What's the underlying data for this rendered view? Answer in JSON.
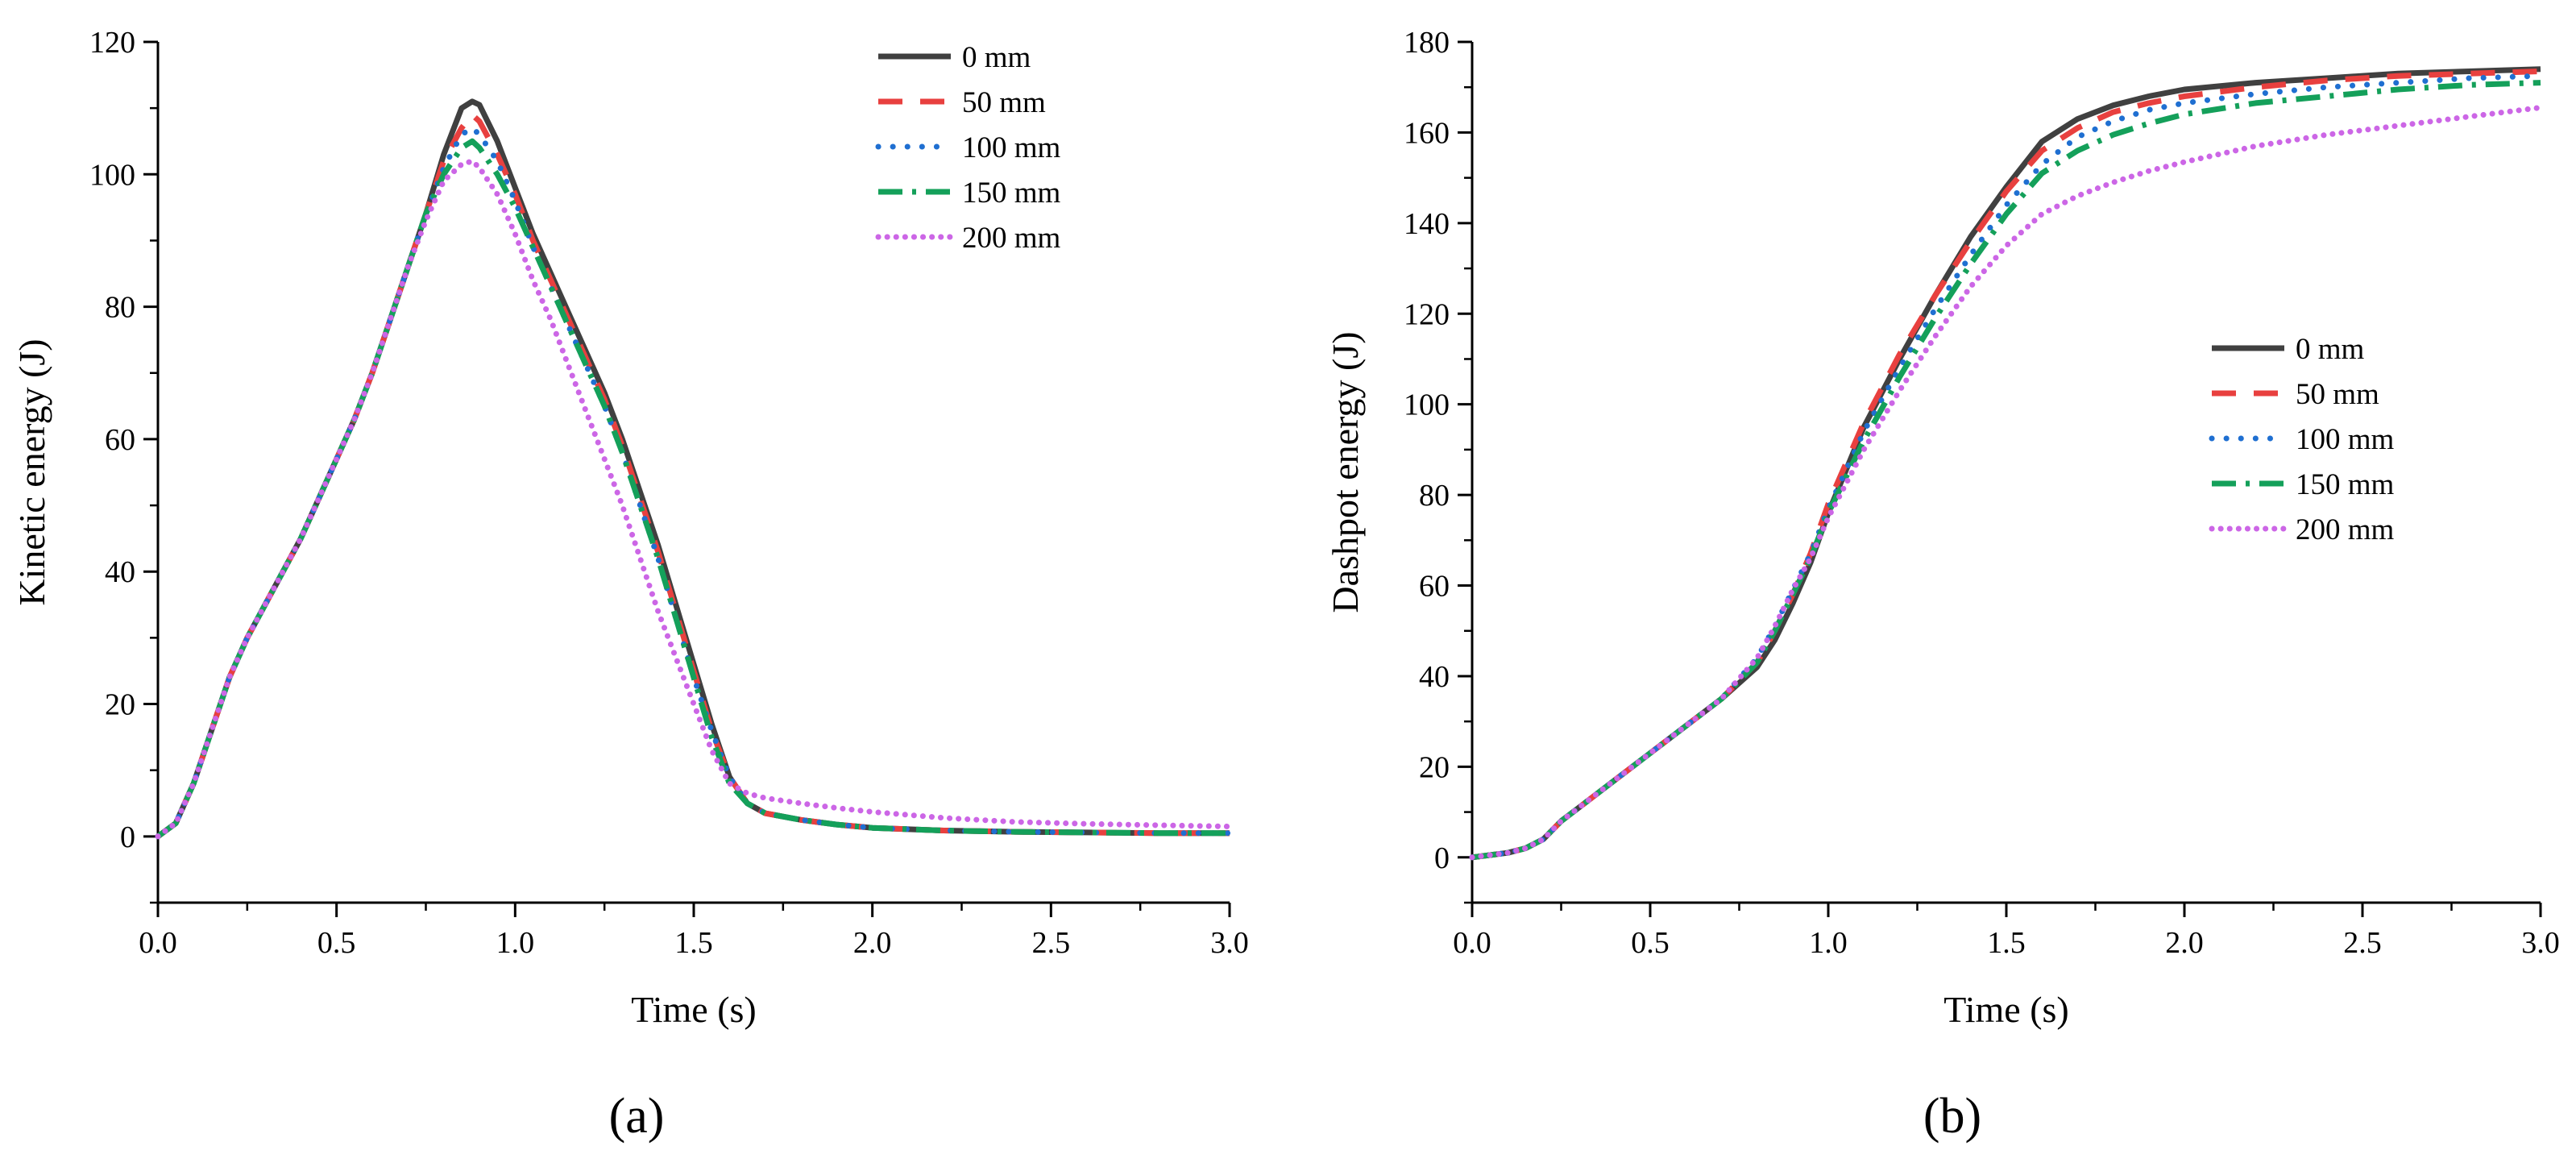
{
  "chart_data": [
    {
      "type": "line",
      "panel_label": "(a)",
      "xlabel": "Time (s)",
      "ylabel": "Kinetic energy (J)",
      "xlim": [
        0,
        3.0
      ],
      "ylim": [
        -10,
        120
      ],
      "xticks": [
        "0.0",
        "0.5",
        "1.0",
        "1.5",
        "2.0",
        "2.5",
        "3.0"
      ],
      "yticks": [
        "0",
        "20",
        "40",
        "60",
        "80",
        "100",
        "120"
      ],
      "legend_position": "top-right",
      "series": [
        {
          "name": "0 mm",
          "color": "#404040",
          "dash": "solid",
          "x": [
            0,
            0.05,
            0.1,
            0.15,
            0.2,
            0.25,
            0.3,
            0.35,
            0.4,
            0.45,
            0.5,
            0.55,
            0.6,
            0.65,
            0.7,
            0.75,
            0.8,
            0.85,
            0.88,
            0.9,
            0.95,
            1.0,
            1.05,
            1.1,
            1.15,
            1.2,
            1.25,
            1.3,
            1.35,
            1.4,
            1.45,
            1.5,
            1.55,
            1.6,
            1.65,
            1.7,
            1.8,
            1.9,
            2.0,
            2.2,
            2.4,
            2.6,
            2.8,
            3.0
          ],
          "y": [
            0,
            2,
            8,
            16,
            24,
            30,
            35,
            40,
            45,
            51,
            57,
            63,
            70,
            78,
            86,
            94,
            103,
            110,
            111,
            110.5,
            105,
            98,
            91,
            85,
            79,
            73,
            67,
            60,
            52,
            44,
            35,
            26,
            17,
            9,
            5,
            3.5,
            2.5,
            1.8,
            1.3,
            0.9,
            0.7,
            0.6,
            0.5,
            0.5
          ]
        },
        {
          "name": "50 mm",
          "color": "#e8403f",
          "dash": "dashed",
          "x": [
            0,
            0.05,
            0.1,
            0.15,
            0.2,
            0.25,
            0.3,
            0.35,
            0.4,
            0.45,
            0.5,
            0.55,
            0.6,
            0.65,
            0.7,
            0.75,
            0.8,
            0.85,
            0.88,
            0.9,
            0.95,
            1.0,
            1.05,
            1.1,
            1.15,
            1.2,
            1.25,
            1.3,
            1.35,
            1.4,
            1.45,
            1.5,
            1.55,
            1.6,
            1.65,
            1.7,
            1.8,
            1.9,
            2.0,
            2.2,
            2.4,
            2.6,
            2.8,
            3.0
          ],
          "y": [
            0,
            2,
            8,
            16,
            24,
            30,
            35,
            40,
            45,
            51,
            57,
            63,
            70,
            78,
            86,
            94,
            102,
            107,
            109,
            108,
            103,
            97,
            90,
            84,
            78,
            72,
            66,
            59,
            51,
            43,
            34,
            25,
            16,
            9,
            5,
            3.5,
            2.5,
            1.8,
            1.3,
            0.9,
            0.7,
            0.6,
            0.5,
            0.5
          ]
        },
        {
          "name": "100 mm",
          "color": "#1f6fd1",
          "dash": "dotted",
          "x": [
            0,
            0.05,
            0.1,
            0.15,
            0.2,
            0.25,
            0.3,
            0.35,
            0.4,
            0.45,
            0.5,
            0.55,
            0.6,
            0.65,
            0.7,
            0.75,
            0.8,
            0.85,
            0.88,
            0.9,
            0.95,
            1.0,
            1.05,
            1.1,
            1.15,
            1.2,
            1.25,
            1.3,
            1.35,
            1.4,
            1.45,
            1.5,
            1.55,
            1.6,
            1.65,
            1.7,
            1.8,
            1.9,
            2.0,
            2.2,
            2.4,
            2.6,
            2.8,
            3.0
          ],
          "y": [
            0,
            2,
            8,
            16,
            24,
            30,
            35,
            40,
            45,
            51,
            57,
            63,
            70,
            78,
            86,
            94,
            101,
            106,
            107,
            106,
            102,
            96,
            89,
            83,
            77,
            71,
            65,
            58,
            50,
            42,
            33,
            24,
            16,
            9,
            5,
            3.5,
            2.5,
            1.8,
            1.3,
            0.9,
            0.7,
            0.6,
            0.5,
            0.5
          ]
        },
        {
          "name": "150 mm",
          "color": "#14a05a",
          "dash": "dashdot",
          "x": [
            0,
            0.05,
            0.1,
            0.15,
            0.2,
            0.25,
            0.3,
            0.35,
            0.4,
            0.45,
            0.5,
            0.55,
            0.6,
            0.65,
            0.7,
            0.75,
            0.8,
            0.85,
            0.88,
            0.9,
            0.95,
            1.0,
            1.05,
            1.1,
            1.15,
            1.2,
            1.25,
            1.3,
            1.35,
            1.4,
            1.45,
            1.5,
            1.55,
            1.6,
            1.65,
            1.7,
            1.8,
            1.9,
            2.0,
            2.2,
            2.4,
            2.6,
            2.8,
            3.0
          ],
          "y": [
            0,
            2,
            8,
            16,
            24,
            30,
            35,
            40,
            45,
            51,
            57,
            63,
            70,
            78,
            86,
            94,
            100,
            104,
            105,
            104,
            100,
            95,
            89,
            83,
            77,
            71,
            65,
            58,
            50,
            42,
            33,
            24,
            15,
            8,
            5,
            3.5,
            2.5,
            1.8,
            1.3,
            0.9,
            0.7,
            0.6,
            0.5,
            0.5
          ]
        },
        {
          "name": "200 mm",
          "color": "#cc66e6",
          "dash": "densedot",
          "x": [
            0,
            0.05,
            0.1,
            0.15,
            0.2,
            0.25,
            0.3,
            0.35,
            0.4,
            0.45,
            0.5,
            0.55,
            0.6,
            0.65,
            0.7,
            0.75,
            0.8,
            0.85,
            0.88,
            0.9,
            0.95,
            1.0,
            1.05,
            1.1,
            1.15,
            1.2,
            1.25,
            1.3,
            1.35,
            1.4,
            1.45,
            1.5,
            1.55,
            1.6,
            1.65,
            1.7,
            1.8,
            1.9,
            2.0,
            2.2,
            2.4,
            2.6,
            2.8,
            3.0
          ],
          "y": [
            0,
            2,
            8,
            16,
            24,
            30,
            35,
            40,
            45,
            51,
            57,
            63,
            70,
            78,
            86,
            93,
            99,
            101.5,
            102,
            101,
            97,
            91,
            84,
            78,
            71,
            64,
            57,
            50,
            42,
            34,
            27,
            20,
            13,
            8,
            6.5,
            5.8,
            5,
            4.3,
            3.7,
            2.8,
            2.2,
            1.9,
            1.7,
            1.5
          ]
        }
      ]
    },
    {
      "type": "line",
      "panel_label": "(b)",
      "xlabel": "Time (s)",
      "ylabel": "Dashpot energy (J)",
      "xlim": [
        0,
        3.0
      ],
      "ylim": [
        -10,
        180
      ],
      "xticks": [
        "0.0",
        "0.5",
        "1.0",
        "1.5",
        "2.0",
        "2.5",
        "3.0"
      ],
      "yticks": [
        "0",
        "20",
        "40",
        "60",
        "80",
        "100",
        "120",
        "140",
        "160",
        "180"
      ],
      "legend_position": "center-right",
      "series": [
        {
          "name": "0 mm",
          "color": "#404040",
          "dash": "solid",
          "x": [
            0,
            0.1,
            0.15,
            0.2,
            0.25,
            0.3,
            0.4,
            0.5,
            0.6,
            0.7,
            0.8,
            0.85,
            0.9,
            0.95,
            1.0,
            1.1,
            1.2,
            1.3,
            1.4,
            1.5,
            1.6,
            1.7,
            1.8,
            1.9,
            2.0,
            2.2,
            2.4,
            2.6,
            2.8,
            3.0
          ],
          "y": [
            0,
            1,
            2,
            4,
            8,
            11,
            17,
            23,
            29,
            35,
            42,
            48,
            56,
            65,
            76,
            95,
            110,
            124,
            137,
            148,
            158,
            163,
            166,
            168,
            169.5,
            171,
            172,
            173,
            173.5,
            174
          ]
        },
        {
          "name": "50 mm",
          "color": "#e8403f",
          "dash": "dashed",
          "x": [
            0,
            0.1,
            0.15,
            0.2,
            0.25,
            0.3,
            0.4,
            0.5,
            0.6,
            0.7,
            0.8,
            0.85,
            0.9,
            0.95,
            1.0,
            1.1,
            1.2,
            1.3,
            1.4,
            1.5,
            1.6,
            1.7,
            1.8,
            1.9,
            2.0,
            2.2,
            2.4,
            2.6,
            2.8,
            3.0
          ],
          "y": [
            0,
            1,
            2,
            4,
            8,
            11,
            17,
            23,
            29,
            35,
            43,
            50,
            58,
            67,
            78,
            96,
            111,
            124,
            136,
            147,
            156,
            161,
            164.5,
            166.5,
            168,
            170,
            171.5,
            172.5,
            173,
            173.5
          ]
        },
        {
          "name": "100 mm",
          "color": "#1f6fd1",
          "dash": "dotted",
          "x": [
            0,
            0.1,
            0.15,
            0.2,
            0.25,
            0.3,
            0.4,
            0.5,
            0.6,
            0.7,
            0.8,
            0.85,
            0.9,
            0.95,
            1.0,
            1.1,
            1.2,
            1.3,
            1.4,
            1.5,
            1.6,
            1.7,
            1.8,
            1.9,
            2.0,
            2.2,
            2.4,
            2.6,
            2.8,
            3.0
          ],
          "y": [
            0,
            1,
            2,
            4,
            8,
            11,
            17,
            23,
            29,
            35,
            44,
            51,
            59,
            67,
            77,
            94,
            108,
            121,
            133,
            144,
            153,
            159,
            162.5,
            165,
            166.5,
            168.5,
            170,
            171,
            172,
            172.5
          ]
        },
        {
          "name": "150 mm",
          "color": "#14a05a",
          "dash": "dashdot",
          "x": [
            0,
            0.1,
            0.15,
            0.2,
            0.25,
            0.3,
            0.4,
            0.5,
            0.6,
            0.7,
            0.8,
            0.85,
            0.9,
            0.95,
            1.0,
            1.1,
            1.2,
            1.3,
            1.4,
            1.5,
            1.6,
            1.7,
            1.8,
            1.9,
            2.0,
            2.2,
            2.4,
            2.6,
            2.8,
            3.0
          ],
          "y": [
            0,
            1,
            2,
            4,
            8,
            11,
            17,
            23,
            29,
            35,
            43,
            50,
            58,
            66,
            76,
            92,
            106,
            119,
            131,
            142,
            151,
            156,
            159.5,
            162,
            164,
            166.5,
            168,
            169.5,
            170.5,
            171
          ]
        },
        {
          "name": "200 mm",
          "color": "#cc66e6",
          "dash": "densedot",
          "x": [
            0,
            0.1,
            0.15,
            0.2,
            0.25,
            0.3,
            0.4,
            0.5,
            0.6,
            0.7,
            0.8,
            0.85,
            0.9,
            0.95,
            1.0,
            1.1,
            1.2,
            1.3,
            1.4,
            1.5,
            1.6,
            1.7,
            1.8,
            1.9,
            2.0,
            2.2,
            2.4,
            2.6,
            2.8,
            3.0
          ],
          "y": [
            0,
            1,
            2,
            4,
            8,
            11,
            17,
            23,
            29,
            35,
            44,
            51,
            59,
            66,
            75,
            90,
            103,
            115,
            126,
            135,
            142,
            146,
            149,
            151.5,
            153.5,
            157,
            159.5,
            161.5,
            163.5,
            165.5
          ]
        }
      ]
    }
  ]
}
